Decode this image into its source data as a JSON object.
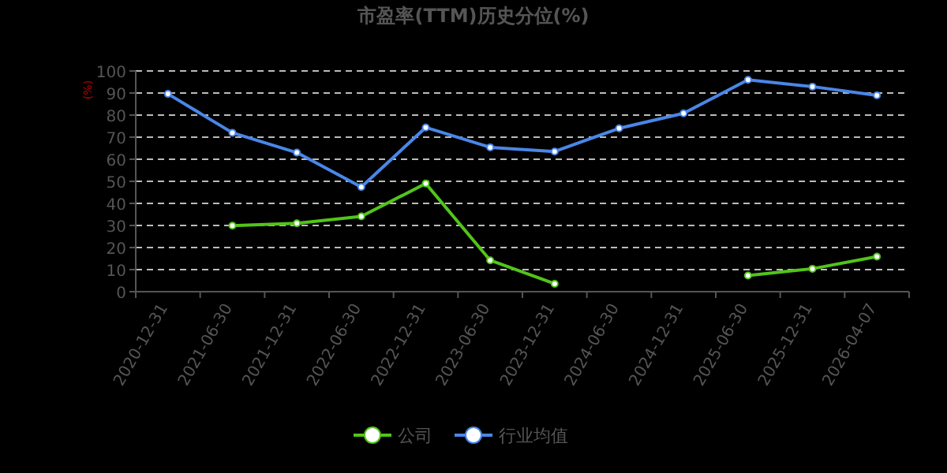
{
  "chart_data": {
    "type": "line",
    "title": "市盈率(TTM)历史分位(%)",
    "ylabel": "(%)",
    "categories": [
      "2020-12-31",
      "2021-06-30",
      "2021-12-31",
      "2022-06-30",
      "2022-12-31",
      "2023-06-30",
      "2023-12-31",
      "2024-06-30",
      "2024-12-31",
      "2025-06-30",
      "2025-12-31",
      "2026-04-07"
    ],
    "series": [
      {
        "name": "公司",
        "color": "#52c41a",
        "values": [
          null,
          29.9,
          31,
          34.1,
          49,
          14.2,
          3.6,
          null,
          null,
          7.3,
          10.4,
          15.9
        ]
      },
      {
        "name": "行业均值",
        "color": "#4a86e8",
        "values": [
          89.6,
          72,
          63,
          47.4,
          74.4,
          65.4,
          63.5,
          74,
          80.8,
          96,
          92.9,
          88.9
        ]
      }
    ],
    "ylim": [
      0,
      100
    ],
    "yticks": [
      0,
      10,
      20,
      30,
      40,
      50,
      60,
      70,
      80,
      90,
      100
    ],
    "grid": "y",
    "legend": "bottom",
    "marker": "circle",
    "line_style": "solid"
  }
}
